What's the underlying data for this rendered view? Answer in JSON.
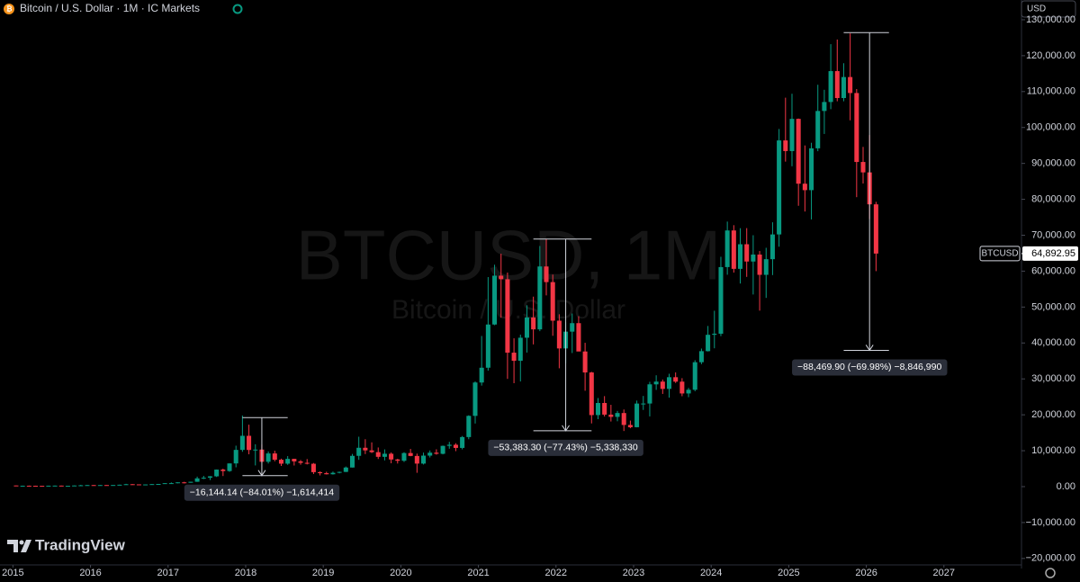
{
  "chart_data": {
    "type": "candlestick",
    "title": "Bitcoin / U.S. Dollar · 1M · IC Markets",
    "watermark": "BTCUSD, 1M",
    "watermark_subtitle": "Bitcoin / U.S. Dollar",
    "currency_button": "USD",
    "branding": "TradingView",
    "symbol_tag": "BTCUSD",
    "last_price": {
      "value": 64892.95,
      "label": "64,892.95"
    },
    "up_color": "#089981",
    "down_color": "#f23645",
    "grid": false,
    "xlim": [
      "2014-11",
      "2027-12"
    ],
    "xticks": [
      2015,
      2016,
      2017,
      2018,
      2019,
      2020,
      2021,
      2022,
      2023,
      2024,
      2025,
      2026,
      2027
    ],
    "ylim": [
      -22800,
      135500
    ],
    "yticks": [
      {
        "value": -20000,
        "label": "−20,000.00"
      },
      {
        "value": -10000,
        "label": "−10,000.00"
      },
      {
        "value": 0,
        "label": "0.00"
      },
      {
        "value": 10000,
        "label": "10,000.00"
      },
      {
        "value": 20000,
        "label": "20,000.00"
      },
      {
        "value": 30000,
        "label": "30,000.00"
      },
      {
        "value": 40000,
        "label": "40,000.00"
      },
      {
        "value": 50000,
        "label": "50,000.00"
      },
      {
        "value": 60000,
        "label": "60,000.00"
      },
      {
        "value": 70000,
        "label": "70,000.00"
      },
      {
        "value": 80000,
        "label": "80,000.00"
      },
      {
        "value": 90000,
        "label": "90,000.00"
      },
      {
        "value": 100000,
        "label": "100,000.00"
      },
      {
        "value": 110000,
        "label": "110,000.00"
      },
      {
        "value": 120000,
        "label": "120,000.00"
      },
      {
        "value": 130000,
        "label": "130,000.00"
      }
    ],
    "x": [
      "2015-01",
      "2015-02",
      "2015-03",
      "2015-04",
      "2015-05",
      "2015-06",
      "2015-07",
      "2015-08",
      "2015-09",
      "2015-10",
      "2015-11",
      "2015-12",
      "2016-01",
      "2016-02",
      "2016-03",
      "2016-04",
      "2016-05",
      "2016-06",
      "2016-07",
      "2016-08",
      "2016-09",
      "2016-10",
      "2016-11",
      "2016-12",
      "2017-01",
      "2017-02",
      "2017-03",
      "2017-04",
      "2017-05",
      "2017-06",
      "2017-07",
      "2017-08",
      "2017-09",
      "2017-10",
      "2017-11",
      "2017-12",
      "2018-01",
      "2018-02",
      "2018-03",
      "2018-04",
      "2018-05",
      "2018-06",
      "2018-07",
      "2018-08",
      "2018-09",
      "2018-10",
      "2018-11",
      "2018-12",
      "2019-01",
      "2019-02",
      "2019-03",
      "2019-04",
      "2019-05",
      "2019-06",
      "2019-07",
      "2019-08",
      "2019-09",
      "2019-10",
      "2019-11",
      "2019-12",
      "2020-01",
      "2020-02",
      "2020-03",
      "2020-04",
      "2020-05",
      "2020-06",
      "2020-07",
      "2020-08",
      "2020-09",
      "2020-10",
      "2020-11",
      "2020-12",
      "2021-01",
      "2021-02",
      "2021-03",
      "2021-04",
      "2021-05",
      "2021-06",
      "2021-07",
      "2021-08",
      "2021-09",
      "2021-10",
      "2021-11",
      "2021-12",
      "2022-01",
      "2022-02",
      "2022-03",
      "2022-04",
      "2022-05",
      "2022-06",
      "2022-07",
      "2022-08",
      "2022-09",
      "2022-10",
      "2022-11",
      "2022-12",
      "2023-01",
      "2023-02",
      "2023-03",
      "2023-04",
      "2023-05",
      "2023-06",
      "2023-07",
      "2023-08",
      "2023-09",
      "2023-10",
      "2023-11",
      "2023-12",
      "2024-01",
      "2024-02",
      "2024-03",
      "2024-04",
      "2024-05",
      "2024-06",
      "2024-07",
      "2024-08",
      "2024-09",
      "2024-10",
      "2024-11",
      "2024-12",
      "2025-01",
      "2025-02",
      "2025-03",
      "2025-04",
      "2025-05",
      "2025-06",
      "2025-07",
      "2025-08",
      "2025-09",
      "2025-10",
      "2025-11",
      "2025-12",
      "2026-01",
      "2026-02"
    ],
    "open": [
      320,
      217,
      254,
      244,
      236,
      230,
      263,
      284,
      230,
      236,
      314,
      377,
      430,
      368,
      437,
      416,
      448,
      531,
      673,
      624,
      575,
      608,
      700,
      742,
      964,
      970,
      1190,
      1080,
      1350,
      2300,
      2480,
      2870,
      4740,
      4340,
      6460,
      10230,
      14150,
      10200,
      10320,
      6920,
      9240,
      7490,
      6390,
      7730,
      7030,
      6630,
      6370,
      4030,
      3740,
      3440,
      3850,
      4100,
      5320,
      8570,
      10820,
      10090,
      9600,
      8300,
      9150,
      7560,
      7200,
      9350,
      8540,
      6410,
      8630,
      9450,
      9140,
      11350,
      11660,
      10780,
      13800,
      19700,
      28990,
      33110,
      45140,
      58740,
      57750,
      37300,
      35040,
      41460,
      47100,
      43790,
      61300,
      56950,
      46210,
      38480,
      43160,
      45520,
      37630,
      31790,
      19920,
      23290,
      20050,
      19420,
      20490,
      17170,
      16540,
      23130,
      23140,
      28480,
      29240,
      27210,
      30470,
      29230,
      25940,
      26970,
      34640,
      37720,
      42280,
      42580,
      61130,
      71330,
      60640,
      67490,
      62680,
      64620,
      58970,
      63330,
      70220,
      96400,
      93430,
      102400,
      84350,
      82550,
      94200,
      104600,
      107100,
      115700,
      108200,
      114050,
      109600,
      90400,
      87500,
      78600
    ],
    "high": [
      320,
      265,
      300,
      261,
      247,
      268,
      317,
      285,
      245,
      335,
      503,
      465,
      462,
      447,
      440,
      467,
      547,
      780,
      706,
      627,
      624,
      730,
      755,
      980,
      1160,
      1210,
      1350,
      1350,
      2790,
      3000,
      2950,
      4780,
      5000,
      6470,
      11400,
      19800,
      17250,
      11800,
      11700,
      9800,
      10000,
      7780,
      8500,
      7760,
      7410,
      7680,
      6580,
      4240,
      4140,
      4200,
      4180,
      5600,
      9100,
      13900,
      13200,
      12330,
      10900,
      10370,
      9510,
      7750,
      9580,
      10500,
      9190,
      9470,
      10070,
      10390,
      11430,
      12470,
      12090,
      14100,
      19860,
      29300,
      41950,
      58350,
      61790,
      64850,
      59600,
      41300,
      42320,
      50500,
      52900,
      67000,
      69000,
      59050,
      47990,
      45800,
      48200,
      47450,
      40050,
      31970,
      24670,
      25200,
      22780,
      21080,
      21480,
      18390,
      23960,
      25250,
      29190,
      31000,
      29820,
      31430,
      31800,
      30200,
      27490,
      35200,
      38440,
      44730,
      48970,
      64000,
      73800,
      72800,
      71960,
      71980,
      70000,
      65600,
      66500,
      73600,
      99600,
      108300,
      109400,
      102500,
      95000,
      95750,
      111900,
      110500,
      123200,
      124500,
      117900,
      126200,
      110700,
      94600,
      97900,
      79300
    ],
    "low": [
      170,
      212,
      235,
      214,
      227,
      218,
      254,
      198,
      226,
      235,
      300,
      350,
      355,
      368,
      395,
      412,
      441,
      520,
      480,
      470,
      567,
      605,
      680,
      740,
      750,
      920,
      890,
      1060,
      1330,
      2100,
      1830,
      2680,
      2950,
      4120,
      5380,
      9700,
      9000,
      5900,
      6600,
      6430,
      7050,
      5750,
      6060,
      5880,
      6100,
      6180,
      3500,
      3120,
      3380,
      3350,
      3700,
      4060,
      5310,
      7460,
      9060,
      9350,
      7700,
      7300,
      6500,
      6430,
      6870,
      8460,
      3850,
      6160,
      8120,
      8900,
      8980,
      10550,
      9880,
      10380,
      13200,
      17570,
      28130,
      32300,
      44950,
      47050,
      30000,
      28800,
      29280,
      37330,
      39600,
      43290,
      53250,
      42000,
      32950,
      34320,
      37200,
      37700,
      26700,
      17600,
      18780,
      19520,
      18130,
      18200,
      15480,
      16260,
      16500,
      21350,
      19550,
      26940,
      25810,
      24790,
      28860,
      25170,
      24900,
      26560,
      34100,
      37630,
      38520,
      41900,
      59000,
      59600,
      56550,
      58400,
      53500,
      49000,
      52550,
      58900,
      66800,
      90500,
      89200,
      78200,
      76600,
      74400,
      93400,
      98200,
      105100,
      107300,
      107300,
      102000,
      80600,
      84400,
      74500,
      60000
    ],
    "close": [
      217,
      254,
      244,
      236,
      230,
      263,
      284,
      230,
      236,
      314,
      377,
      430,
      368,
      437,
      416,
      448,
      531,
      673,
      624,
      575,
      608,
      700,
      742,
      964,
      970,
      1190,
      1080,
      1350,
      2300,
      2480,
      2870,
      4740,
      4340,
      6460,
      10230,
      14150,
      10200,
      10320,
      6920,
      9240,
      7490,
      6390,
      7730,
      7030,
      6630,
      6370,
      4030,
      3740,
      3440,
      3850,
      4100,
      5320,
      8570,
      10820,
      10090,
      9600,
      8300,
      9150,
      7560,
      7200,
      9350,
      8540,
      6410,
      8630,
      9450,
      9140,
      11350,
      11660,
      10780,
      13800,
      19700,
      28990,
      33110,
      45140,
      58740,
      57750,
      37300,
      35040,
      41460,
      47100,
      43790,
      61300,
      56950,
      46210,
      38480,
      43160,
      45520,
      37630,
      31790,
      19920,
      23290,
      20050,
      19420,
      20490,
      17170,
      16540,
      23130,
      23140,
      28480,
      29240,
      27210,
      30470,
      29230,
      25940,
      26970,
      34640,
      37720,
      42280,
      42580,
      61130,
      71330,
      60640,
      67490,
      62680,
      64620,
      58970,
      63330,
      70220,
      96400,
      93430,
      102400,
      84350,
      82550,
      94200,
      104600,
      107100,
      115700,
      108200,
      114050,
      109600,
      90400,
      87500,
      78600,
      64892.95
    ],
    "ranges": [
      {
        "label": "−16,144.14 (−84.01%) −1,614,414",
        "from": 19217,
        "to": 3073,
        "x_start": "2017-12",
        "x_end": "2018-07",
        "x_arrow": "2018-03"
      },
      {
        "label": "−53,383.30 (−77.43%) −5,338,330",
        "from": 68944,
        "to": 15561,
        "x_start": "2021-09",
        "x_end": "2022-06",
        "x_arrow": "2022-02"
      },
      {
        "label": "−88,469.90 (−69.98%) −8,846,990",
        "from": 126422,
        "to": 37952,
        "x_start": "2025-09",
        "x_end": "2026-04",
        "x_arrow": "2026-01"
      }
    ]
  }
}
